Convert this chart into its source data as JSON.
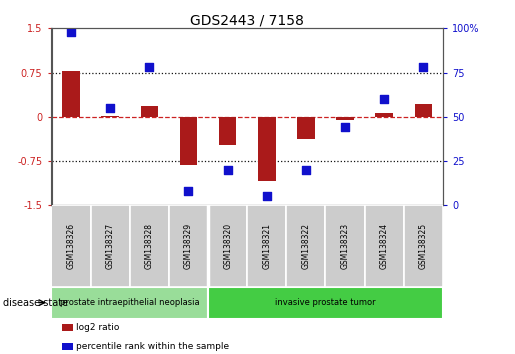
{
  "title": "GDS2443 / 7158",
  "samples": [
    "GSM138326",
    "GSM138327",
    "GSM138328",
    "GSM138329",
    "GSM138320",
    "GSM138321",
    "GSM138322",
    "GSM138323",
    "GSM138324",
    "GSM138325"
  ],
  "log2_ratio": [
    0.78,
    0.02,
    0.18,
    -0.82,
    -0.48,
    -1.08,
    -0.38,
    -0.05,
    0.07,
    0.22
  ],
  "percentile_rank": [
    98,
    55,
    78,
    8,
    20,
    5,
    20,
    44,
    60,
    78
  ],
  "ylim_left": [
    -1.5,
    1.5
  ],
  "yticks_left": [
    -1.5,
    -0.75,
    0.0,
    0.75,
    1.5
  ],
  "ytick_labels_left": [
    "-1.5",
    "-0.75",
    "0",
    "0.75",
    "1.5"
  ],
  "ylim_right": [
    0,
    100
  ],
  "yticks_right": [
    0,
    25,
    50,
    75,
    100
  ],
  "ytick_labels_right": [
    "0",
    "25",
    "50",
    "75",
    "100%"
  ],
  "bar_color": "#aa1a1a",
  "dot_color": "#1010cc",
  "zero_line_color": "#cc2222",
  "hline_color": "#111111",
  "hline_positions": [
    -0.75,
    0.75
  ],
  "groups": [
    {
      "label": "prostate intraepithelial neoplasia",
      "start": 0,
      "end": 4,
      "color": "#99dd99"
    },
    {
      "label": "invasive prostate tumor",
      "start": 4,
      "end": 10,
      "color": "#44cc44"
    }
  ],
  "disease_state_label": "disease state",
  "legend_items": [
    {
      "color": "#aa1a1a",
      "label": "log2 ratio"
    },
    {
      "color": "#1010cc",
      "label": "percentile rank within the sample"
    }
  ],
  "bar_width": 0.45,
  "dot_size": 28,
  "bg_color": "#ffffff",
  "title_fontsize": 10,
  "tick_fontsize": 7,
  "sample_fontsize": 5.5,
  "group_fontsize": 6,
  "legend_fontsize": 6.5,
  "disease_label_fontsize": 7
}
